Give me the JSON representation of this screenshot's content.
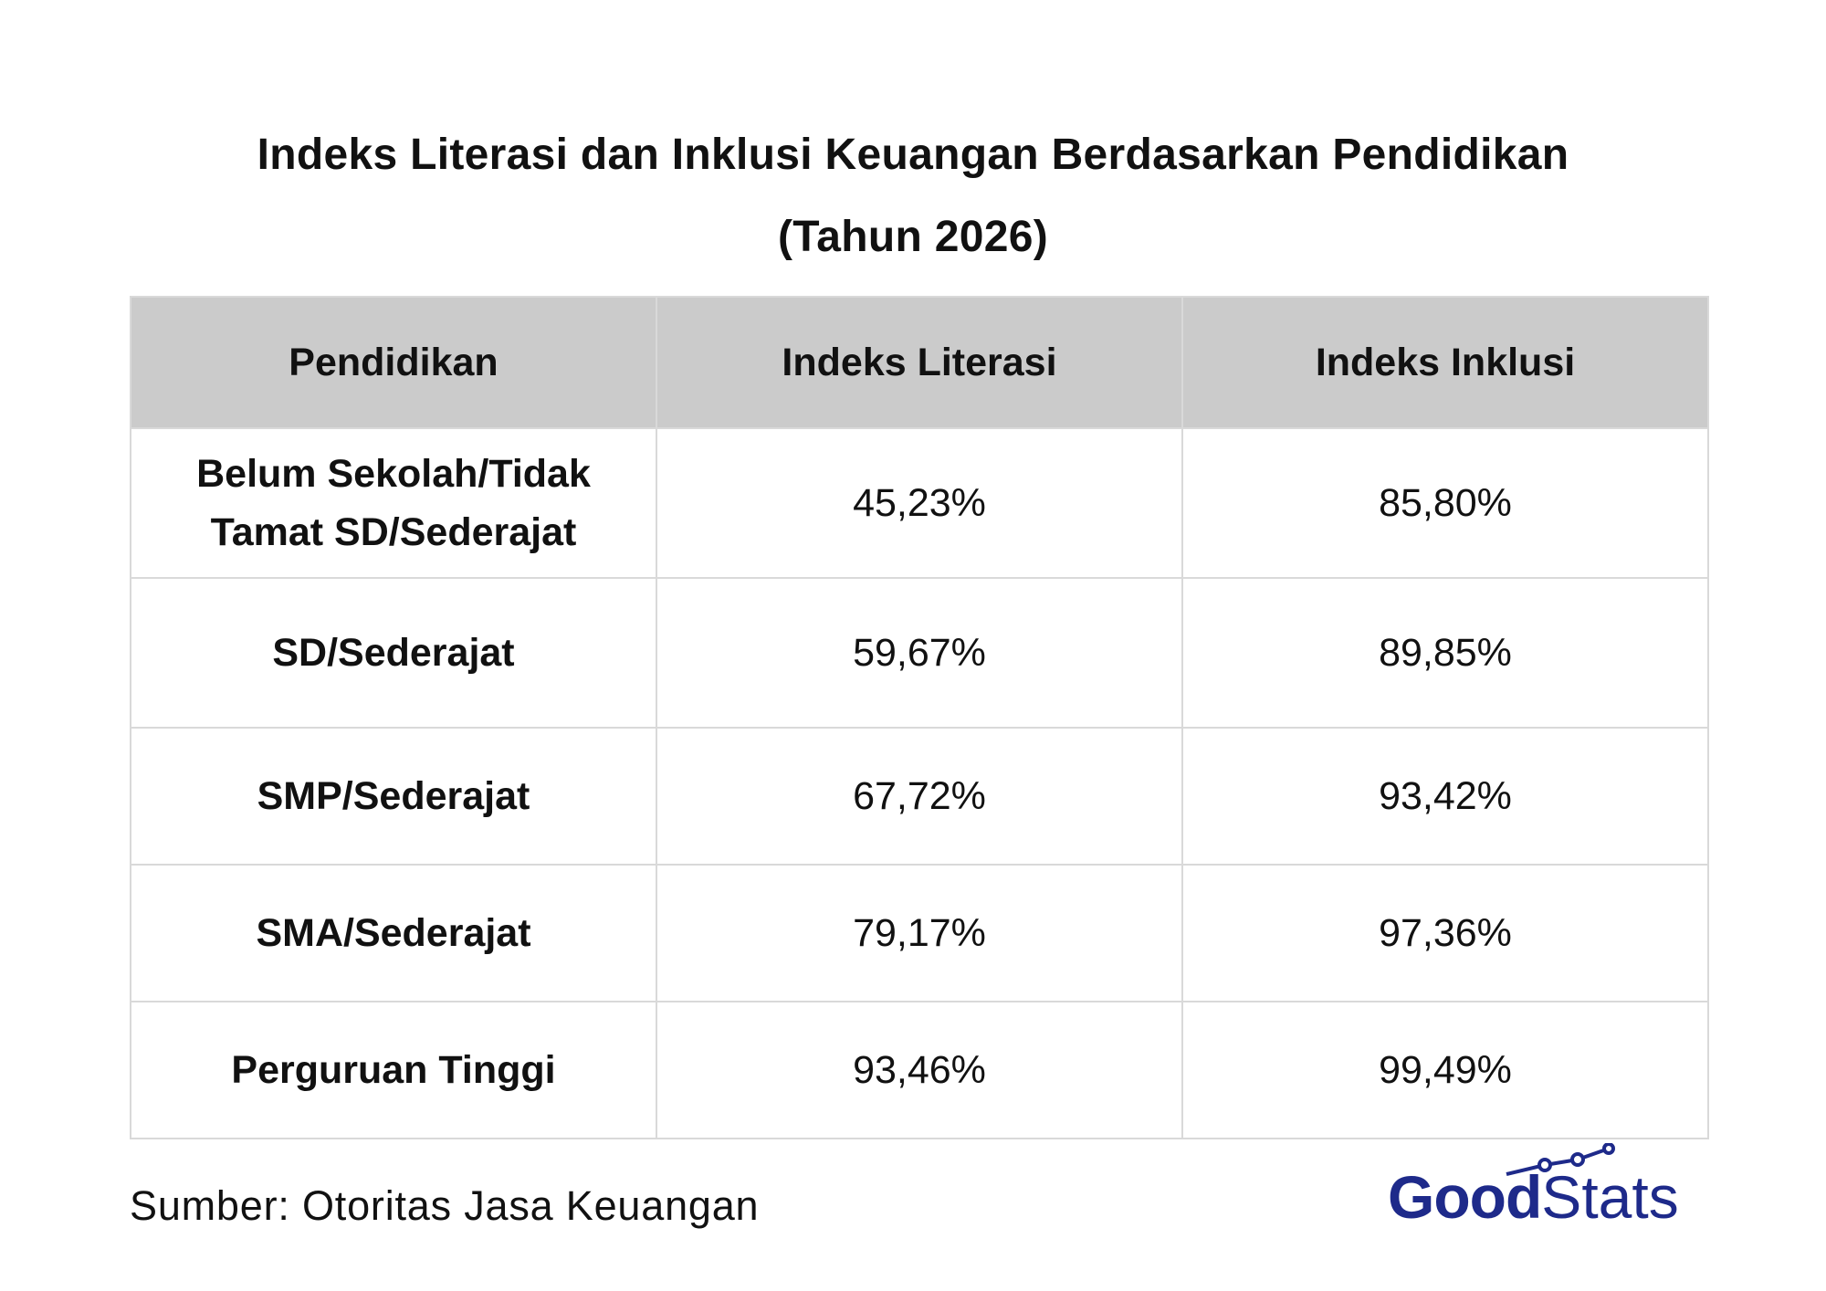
{
  "chart_data": {
    "type": "table",
    "title": "Indeks Literasi dan Inklusi Keuangan Berdasarkan Pendidikan",
    "subtitle": "(Tahun 2026)",
    "columns": [
      "Pendidikan",
      "Indeks Literasi",
      "Indeks Inklusi"
    ],
    "rows": [
      {
        "pendidikan": "Belum Sekolah/Tidak Tamat SD/Sederajat",
        "literasi": "45,23%",
        "inklusi": "85,80%"
      },
      {
        "pendidikan": "SD/Sederajat",
        "literasi": "59,67%",
        "inklusi": "89,85%"
      },
      {
        "pendidikan": "SMP/Sederajat",
        "literasi": "67,72%",
        "inklusi": "93,42%"
      },
      {
        "pendidikan": "SMA/Sederajat",
        "literasi": "79,17%",
        "inklusi": "97,36%"
      },
      {
        "pendidikan": "Perguruan Tinggi",
        "literasi": "93,46%",
        "inklusi": "99,49%"
      }
    ],
    "row_label_lines": [
      [
        "Belum Sekolah/Tidak",
        "Tamat SD/Sederajat"
      ],
      [
        "SD/Sederajat"
      ],
      [
        "SMP/Sederajat"
      ],
      [
        "SMA/Sederajat"
      ],
      [
        "Perguruan Tinggi"
      ]
    ],
    "header_color": "#cbcbcb",
    "border_color": "#d9d9d9"
  },
  "footer": {
    "source": "Sumber:  Otoritas Jasa Keuangan"
  },
  "logo": {
    "part1": "Good",
    "part2": "Stats",
    "icon": "trend-line-icon",
    "color": "#1e2a8a"
  }
}
